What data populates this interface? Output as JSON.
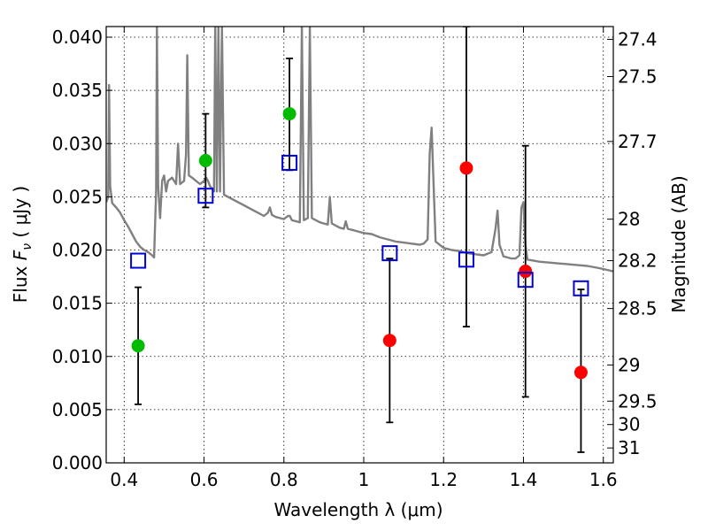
{
  "chart_data": {
    "type": "scatter",
    "xlabel": "Wavelength  λ (μm)",
    "ylabel": "Flux  F_ν  ( μJy )",
    "ylabel_parts": {
      "prefix": "Flux  ",
      "symbol": "F",
      "subscript": "ν",
      "suffix": "  ( μJy )"
    },
    "y2label": "Magnitude (AB)",
    "xlim": [
      0.355,
      1.625
    ],
    "ylim": [
      0.0,
      0.041
    ],
    "grid": true,
    "x_ticks": [
      0.4,
      0.6,
      0.8,
      1.0,
      1.2,
      1.4,
      1.6
    ],
    "x_tick_labels": [
      "0.4",
      "0.6",
      "0.8",
      "1",
      "1.2",
      "1.4",
      "1.6"
    ],
    "y_ticks": [
      0.0,
      0.005,
      0.01,
      0.015,
      0.02,
      0.025,
      0.03,
      0.035,
      0.04
    ],
    "y_tick_labels": [
      "0.000",
      "0.005",
      "0.010",
      "0.015",
      "0.020",
      "0.025",
      "0.030",
      "0.035",
      "0.040"
    ],
    "y2_ticks": [
      {
        "flux": 0.0398,
        "label": "27.4"
      },
      {
        "flux": 0.0363,
        "label": "27.5"
      },
      {
        "flux": 0.0302,
        "label": "27.7"
      },
      {
        "flux": 0.0229,
        "label": "28"
      },
      {
        "flux": 0.019,
        "label": "28.2"
      },
      {
        "flux": 0.0145,
        "label": "28.5"
      },
      {
        "flux": 0.0092,
        "label": "29"
      },
      {
        "flux": 0.0058,
        "label": "29.5"
      },
      {
        "flux": 0.0036,
        "label": "30"
      },
      {
        "flux": 0.0014,
        "label": "31"
      }
    ],
    "series": [
      {
        "color": "#808080",
        "kind": "line",
        "points": [
          [
            0.355,
            0.0245
          ],
          [
            0.36,
            0.025
          ],
          [
            0.362,
            0.0355
          ],
          [
            0.365,
            0.026
          ],
          [
            0.37,
            0.0244
          ],
          [
            0.38,
            0.024
          ],
          [
            0.39,
            0.0235
          ],
          [
            0.4,
            0.0228
          ],
          [
            0.41,
            0.0222
          ],
          [
            0.42,
            0.0215
          ],
          [
            0.43,
            0.0208
          ],
          [
            0.44,
            0.0203
          ],
          [
            0.45,
            0.02
          ],
          [
            0.46,
            0.0198
          ],
          [
            0.47,
            0.0195
          ],
          [
            0.475,
            0.0193
          ],
          [
            0.48,
            0.0255
          ],
          [
            0.482,
            0.041
          ],
          [
            0.485,
            0.026
          ],
          [
            0.49,
            0.023
          ],
          [
            0.495,
            0.0265
          ],
          [
            0.5,
            0.027
          ],
          [
            0.505,
            0.0255
          ],
          [
            0.51,
            0.0265
          ],
          [
            0.52,
            0.0268
          ],
          [
            0.53,
            0.0262
          ],
          [
            0.535,
            0.03
          ],
          [
            0.54,
            0.0262
          ],
          [
            0.55,
            0.0265
          ],
          [
            0.555,
            0.029
          ],
          [
            0.558,
            0.0383
          ],
          [
            0.562,
            0.027
          ],
          [
            0.57,
            0.0268
          ],
          [
            0.58,
            0.0265
          ],
          [
            0.59,
            0.0262
          ],
          [
            0.6,
            0.0265
          ],
          [
            0.605,
            0.0268
          ],
          [
            0.61,
            0.0265
          ],
          [
            0.615,
            0.026
          ],
          [
            0.62,
            0.0258
          ],
          [
            0.625,
            0.0255
          ],
          [
            0.628,
            0.041
          ],
          [
            0.632,
            0.0255
          ],
          [
            0.636,
            0.041
          ],
          [
            0.64,
            0.0255
          ],
          [
            0.645,
            0.041
          ],
          [
            0.65,
            0.0252
          ],
          [
            0.66,
            0.025
          ],
          [
            0.67,
            0.0248
          ],
          [
            0.68,
            0.0246
          ],
          [
            0.69,
            0.0244
          ],
          [
            0.7,
            0.0242
          ],
          [
            0.71,
            0.024
          ],
          [
            0.72,
            0.0238
          ],
          [
            0.73,
            0.0236
          ],
          [
            0.74,
            0.0234
          ],
          [
            0.75,
            0.0232
          ],
          [
            0.76,
            0.0235
          ],
          [
            0.765,
            0.024
          ],
          [
            0.77,
            0.0233
          ],
          [
            0.78,
            0.0231
          ],
          [
            0.79,
            0.023
          ],
          [
            0.8,
            0.0229
          ],
          [
            0.81,
            0.0232
          ],
          [
            0.815,
            0.0232
          ],
          [
            0.82,
            0.0228
          ],
          [
            0.83,
            0.0227
          ],
          [
            0.84,
            0.0226
          ],
          [
            0.845,
            0.041
          ],
          [
            0.85,
            0.0228
          ],
          [
            0.86,
            0.023
          ],
          [
            0.865,
            0.041
          ],
          [
            0.87,
            0.023
          ],
          [
            0.88,
            0.0228
          ],
          [
            0.89,
            0.0226
          ],
          [
            0.9,
            0.0225
          ],
          [
            0.91,
            0.0224
          ],
          [
            0.915,
            0.025
          ],
          [
            0.92,
            0.0225
          ],
          [
            0.93,
            0.0223
          ],
          [
            0.94,
            0.0221
          ],
          [
            0.95,
            0.022
          ],
          [
            0.955,
            0.0227
          ],
          [
            0.96,
            0.022
          ],
          [
            0.97,
            0.0219
          ],
          [
            0.98,
            0.0218
          ],
          [
            0.99,
            0.0217
          ],
          [
            1.0,
            0.0216
          ],
          [
            1.02,
            0.0215
          ],
          [
            1.04,
            0.0212
          ],
          [
            1.06,
            0.021
          ],
          [
            1.08,
            0.0208
          ],
          [
            1.1,
            0.0207
          ],
          [
            1.12,
            0.0206
          ],
          [
            1.14,
            0.0205
          ],
          [
            1.15,
            0.0206
          ],
          [
            1.16,
            0.021
          ],
          [
            1.165,
            0.029
          ],
          [
            1.17,
            0.0315
          ],
          [
            1.175,
            0.026
          ],
          [
            1.18,
            0.0208
          ],
          [
            1.2,
            0.0202
          ],
          [
            1.22,
            0.02
          ],
          [
            1.24,
            0.0199
          ],
          [
            1.26,
            0.0197
          ],
          [
            1.28,
            0.0196
          ],
          [
            1.3,
            0.0195
          ],
          [
            1.32,
            0.0198
          ],
          [
            1.33,
            0.022
          ],
          [
            1.335,
            0.0237
          ],
          [
            1.34,
            0.0205
          ],
          [
            1.35,
            0.0194
          ],
          [
            1.36,
            0.0193
          ],
          [
            1.37,
            0.0192
          ],
          [
            1.38,
            0.0192
          ],
          [
            1.39,
            0.0195
          ],
          [
            1.395,
            0.024
          ],
          [
            1.4,
            0.0245
          ],
          [
            1.405,
            0.0205
          ],
          [
            1.41,
            0.0191
          ],
          [
            1.44,
            0.0189
          ],
          [
            1.47,
            0.0188
          ],
          [
            1.5,
            0.0187
          ],
          [
            1.53,
            0.0186
          ],
          [
            1.56,
            0.0185
          ],
          [
            1.59,
            0.0183
          ],
          [
            1.625,
            0.018
          ]
        ]
      },
      {
        "color": "#00bb00",
        "kind": "circles",
        "points": [
          [
            0.435,
            0.011
          ],
          [
            0.604,
            0.0284
          ],
          [
            0.814,
            0.0328
          ]
        ]
      },
      {
        "color": "#ff0000",
        "kind": "circles",
        "points": [
          [
            1.065,
            0.0115
          ],
          [
            1.257,
            0.0277
          ],
          [
            1.405,
            0.018
          ],
          [
            1.544,
            0.0085
          ]
        ]
      },
      {
        "color": "#0000dd",
        "kind": "squares",
        "points": [
          [
            0.435,
            0.019
          ],
          [
            0.604,
            0.0251
          ],
          [
            0.814,
            0.0282
          ],
          [
            1.065,
            0.0197
          ],
          [
            1.257,
            0.0191
          ],
          [
            1.405,
            0.0172
          ],
          [
            1.544,
            0.0164
          ]
        ]
      }
    ],
    "errorbars": [
      {
        "x": 0.435,
        "low": 0.0055,
        "high": 0.0165
      },
      {
        "x": 0.604,
        "low": 0.024,
        "high": 0.0328
      },
      {
        "x": 0.814,
        "low": 0.0275,
        "high": 0.038
      },
      {
        "x": 1.065,
        "low": 0.0038,
        "high": 0.0192
      },
      {
        "x": 1.257,
        "low": 0.0128,
        "high": 0.041
      },
      {
        "x": 1.405,
        "low": 0.0062,
        "high": 0.0298
      },
      {
        "x": 1.544,
        "low": 0.001,
        "high": 0.0163
      }
    ]
  }
}
